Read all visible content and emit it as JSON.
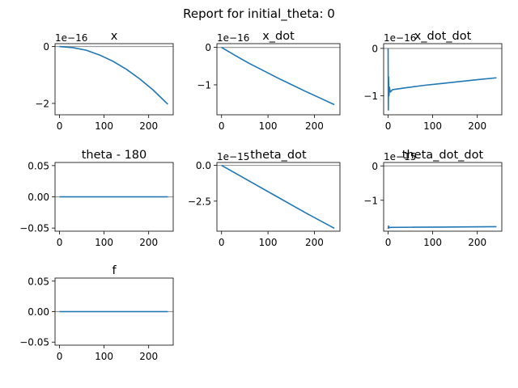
{
  "page_title": "Report for initial_theta: 0",
  "colors": {
    "line": "#1f77b4",
    "zero_line": "#9a9a9a",
    "axes": "#000000",
    "background": "#ffffff"
  },
  "chart_data": [
    {
      "type": "line",
      "title": "x",
      "offset_label": "1e−16",
      "x": [
        0,
        30,
        60,
        90,
        120,
        150,
        180,
        210,
        243
      ],
      "y": [
        0,
        -0.04,
        -0.13,
        -0.3,
        -0.52,
        -0.8,
        -1.14,
        -1.53,
        -2.03
      ],
      "xlim": [
        -10,
        255
      ],
      "ylim": [
        -2.4,
        0.1
      ],
      "xticks": [
        0,
        100,
        200
      ],
      "xtick_labels": [
        "0",
        "100",
        "200"
      ],
      "yticks": [
        0,
        -2
      ],
      "ytick_labels": [
        "0",
        "−2"
      ],
      "reference_line": 0,
      "grid": false
    },
    {
      "type": "line",
      "title": "x_dot",
      "offset_label": "1e−16",
      "x": [
        0,
        30,
        60,
        90,
        120,
        150,
        180,
        210,
        243
      ],
      "y": [
        0,
        -0.22,
        -0.43,
        -0.62,
        -0.81,
        -0.99,
        -1.17,
        -1.34,
        -1.53
      ],
      "xlim": [
        -10,
        255
      ],
      "ylim": [
        -1.8,
        0.1
      ],
      "xticks": [
        0,
        100,
        200
      ],
      "xtick_labels": [
        "0",
        "100",
        "200"
      ],
      "yticks": [
        0,
        -1
      ],
      "ytick_labels": [
        "0",
        "−1"
      ],
      "reference_line": 0,
      "grid": false
    },
    {
      "type": "line",
      "title": "x_dot_dot",
      "offset_label": "1e−16",
      "x": [
        0,
        0.5,
        1,
        2,
        3,
        5,
        10,
        40,
        80,
        120,
        160,
        200,
        243
      ],
      "y": [
        0,
        -1.3,
        -0.6,
        -1.0,
        -0.82,
        -0.92,
        -0.87,
        -0.83,
        -0.78,
        -0.74,
        -0.7,
        -0.66,
        -0.62
      ],
      "xlim": [
        -10,
        255
      ],
      "ylim": [
        -1.4,
        0.1
      ],
      "xticks": [
        0,
        100,
        200
      ],
      "xtick_labels": [
        "0",
        "100",
        "200"
      ],
      "yticks": [
        0,
        -1
      ],
      "ytick_labels": [
        "0",
        "−1"
      ],
      "reference_line": 0,
      "grid": false
    },
    {
      "type": "line",
      "title": "theta - 180",
      "offset_label": "",
      "x": [
        0,
        243
      ],
      "y": [
        0,
        0
      ],
      "xlim": [
        -10,
        255
      ],
      "ylim": [
        -0.055,
        0.055
      ],
      "xticks": [
        0,
        100,
        200
      ],
      "xtick_labels": [
        "0",
        "100",
        "200"
      ],
      "yticks": [
        0.05,
        0,
        -0.05
      ],
      "ytick_labels": [
        "0.05",
        "0.00",
        "−0.05"
      ],
      "reference_line": 0,
      "grid": false
    },
    {
      "type": "line",
      "title": "theta_dot",
      "offset_label": "1e−15",
      "x": [
        0,
        60,
        120,
        180,
        243
      ],
      "y": [
        0,
        -1.1,
        -2.2,
        -3.3,
        -4.4
      ],
      "xlim": [
        -10,
        255
      ],
      "ylim": [
        -4.6,
        0.2
      ],
      "xticks": [
        0,
        100,
        200
      ],
      "xtick_labels": [
        "0",
        "100",
        "200"
      ],
      "yticks": [
        0,
        -2.5
      ],
      "ytick_labels": [
        "0.0",
        "−2.5"
      ],
      "reference_line": 0,
      "grid": false
    },
    {
      "type": "line",
      "title": "theta_dot_dot",
      "offset_label": "1e−15",
      "x": [
        0,
        1,
        2,
        5,
        60,
        120,
        180,
        243
      ],
      "y": [
        -1.83,
        -1.75,
        -1.8,
        -1.79,
        -1.785,
        -1.78,
        -1.775,
        -1.77
      ],
      "xlim": [
        -10,
        255
      ],
      "ylim": [
        -1.9,
        0.1
      ],
      "xticks": [
        0,
        100,
        200
      ],
      "xtick_labels": [
        "0",
        "100",
        "200"
      ],
      "yticks": [
        0,
        -1
      ],
      "ytick_labels": [
        "0",
        "−1"
      ],
      "reference_line": 0,
      "grid": false
    },
    {
      "type": "line",
      "title": "f",
      "offset_label": "",
      "x": [
        0,
        243
      ],
      "y": [
        0,
        0
      ],
      "xlim": [
        -10,
        255
      ],
      "ylim": [
        -0.055,
        0.055
      ],
      "xticks": [
        0,
        100,
        200
      ],
      "xtick_labels": [
        "0",
        "100",
        "200"
      ],
      "yticks": [
        0.05,
        0,
        -0.05
      ],
      "ytick_labels": [
        "0.05",
        "0.00",
        "−0.05"
      ],
      "reference_line": 0,
      "grid": false
    }
  ]
}
